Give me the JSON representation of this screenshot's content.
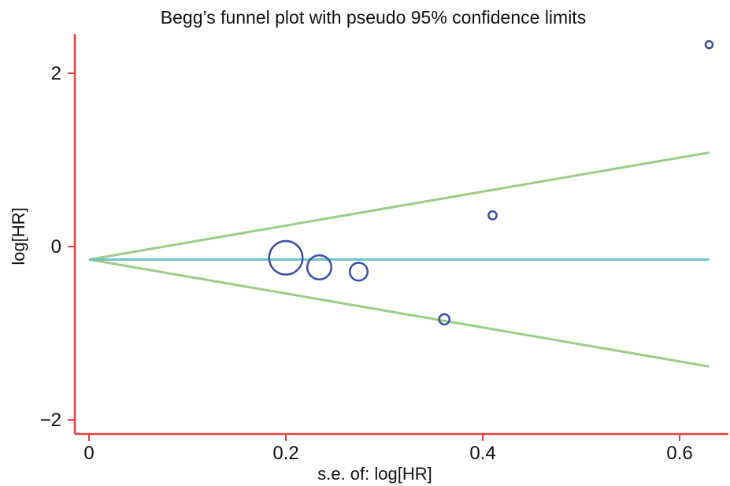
{
  "chart_data": {
    "type": "scatter",
    "title": "Begg’s funnel plot with pseudo 95% confidence limits",
    "xlabel": "s.e. of: log[HR]",
    "ylabel": "log[HR]",
    "xlim": [
      0,
      0.65
    ],
    "ylim": [
      -2.2,
      2.4
    ],
    "x_ticks": [
      0,
      0.2,
      0.4,
      0.6
    ],
    "x_tick_labels": [
      "0",
      "0.2",
      "0.4",
      "0.6"
    ],
    "y_ticks": [
      2,
      0,
      -2
    ],
    "y_tick_labels": [
      "2",
      "0",
      "−2"
    ],
    "grid": false,
    "pooled_estimate": -0.15,
    "se_max": 0.63,
    "points": [
      {
        "se": 0.2,
        "log_hr": -0.13,
        "weight": 25
      },
      {
        "se": 0.234,
        "log_hr": -0.24,
        "weight": 18
      },
      {
        "se": 0.274,
        "log_hr": -0.29,
        "weight": 13.3
      },
      {
        "se": 0.361,
        "log_hr": -0.84,
        "weight": 7.7
      },
      {
        "se": 0.41,
        "log_hr": 0.36,
        "weight": 6
      },
      {
        "se": 0.63,
        "log_hr": 2.33,
        "weight": 2.5
      }
    ],
    "colors": {
      "axes": "#e8403a",
      "points": "#3a4ea6",
      "pooled_line": "#6cc4cc",
      "limits": "#9ccd84"
    }
  }
}
